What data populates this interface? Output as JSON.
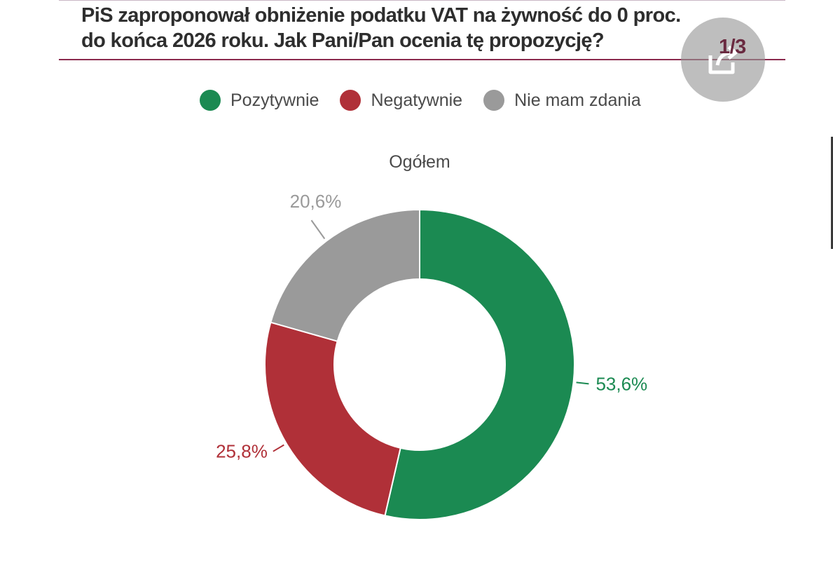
{
  "header": {
    "title_line1": "PiS zaproponował obniżenie podatku VAT na żywność do 0 proc.",
    "title_line2": "do końca 2026 roku. Jak Pani/Pan ocenia tę propozycję?",
    "counter": "1/3",
    "share_icon": "share-icon"
  },
  "colors": {
    "accent_rule": "#8b2a4e",
    "positive": "#1b8a52",
    "negative": "#b03038",
    "neutral": "#9a9a9a"
  },
  "chart_data": {
    "type": "pie",
    "subtitle": "Ogółem",
    "legend_position": "top",
    "series": [
      {
        "name": "Pozytywnie",
        "value": 53.6,
        "label": "53,6%",
        "color": "#1b8a52"
      },
      {
        "name": "Negatywnie",
        "value": 25.8,
        "label": "25,8%",
        "color": "#b03038"
      },
      {
        "name": "Nie mam zdania",
        "value": 20.6,
        "label": "20,6%",
        "color": "#9a9a9a"
      }
    ]
  }
}
